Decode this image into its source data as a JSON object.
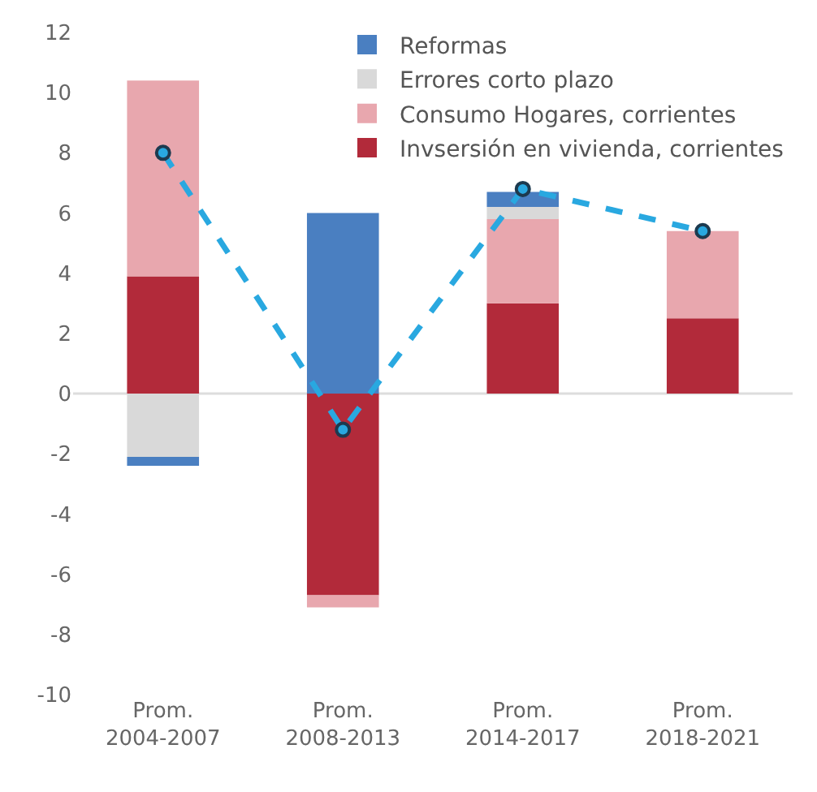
{
  "chart_data": {
    "type": "bar",
    "stacked": true,
    "categories": [
      "Prom.\n2004-2007",
      "Prom.\n2008-2013",
      "Prom.\n2014-2017",
      "Prom.\n2018-2021"
    ],
    "series": [
      {
        "name": "Invsersión en vivienda, corrientes",
        "color": "#b22a3a",
        "values": [
          3.9,
          -6.7,
          3.0,
          2.5
        ]
      },
      {
        "name": "Consumo Hogares, corrientes",
        "color": "#e8a7ae",
        "values": [
          6.5,
          -0.4,
          2.8,
          2.9
        ]
      },
      {
        "name": "Errores corto plazo",
        "color": "#d9d9d9",
        "values": [
          -2.1,
          null,
          0.4,
          null
        ]
      },
      {
        "name": "Reformas",
        "color": "#4a7fc1",
        "values": [
          -0.3,
          6.0,
          0.5,
          null
        ]
      },
      {
        "type": "line",
        "color": "#29a8e0",
        "values": [
          8.0,
          -1.2,
          6.8,
          5.4
        ],
        "marker": "circle",
        "line_style": "dashed"
      }
    ],
    "ylim": [
      -10,
      12
    ],
    "ref_lines": [
      {
        "axis": "y",
        "value": 0,
        "color": "#dddddd"
      }
    ],
    "yticks": [
      -10,
      -8,
      -6,
      -4,
      -2,
      0,
      2,
      4,
      6,
      8,
      10,
      12
    ],
    "grid": false,
    "legend": "top right"
  }
}
